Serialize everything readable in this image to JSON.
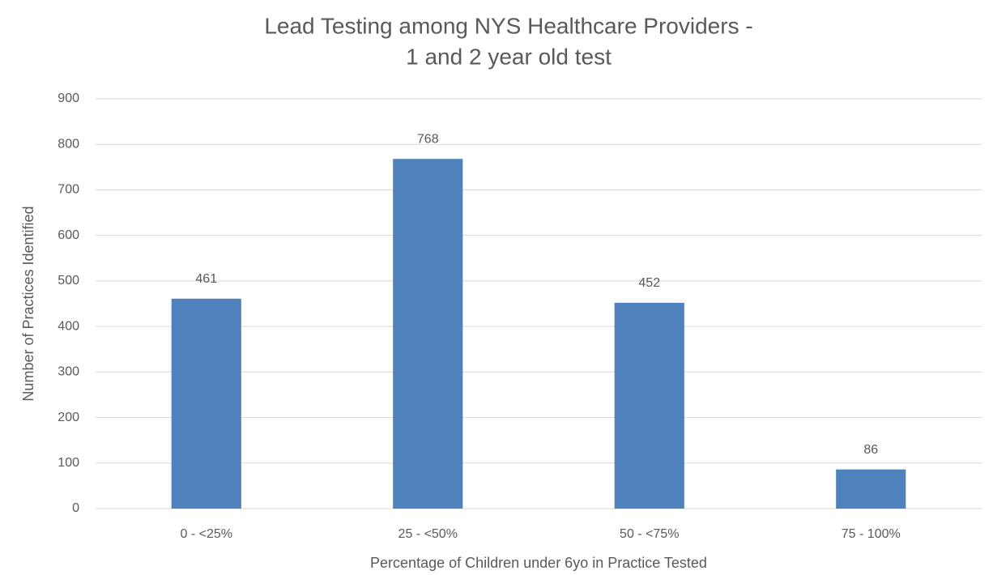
{
  "chart_data": {
    "type": "bar",
    "title": [
      "Lead Testing among NYS Healthcare Providers -",
      "1 and 2 year old test"
    ],
    "x_label": "Percentage of Children under 6yo in Practice Tested",
    "y_label": "Number of Practices Identified",
    "categories": [
      "0 - <25%",
      "25 - <50%",
      "50 - <75%",
      "75 - 100%"
    ],
    "values": [
      461,
      768,
      452,
      86
    ],
    "color": "#4f81bd",
    "ylim": [
      0,
      900
    ],
    "yticks": [
      0,
      100,
      200,
      300,
      400,
      500,
      600,
      700,
      800,
      900
    ],
    "grid": true
  }
}
